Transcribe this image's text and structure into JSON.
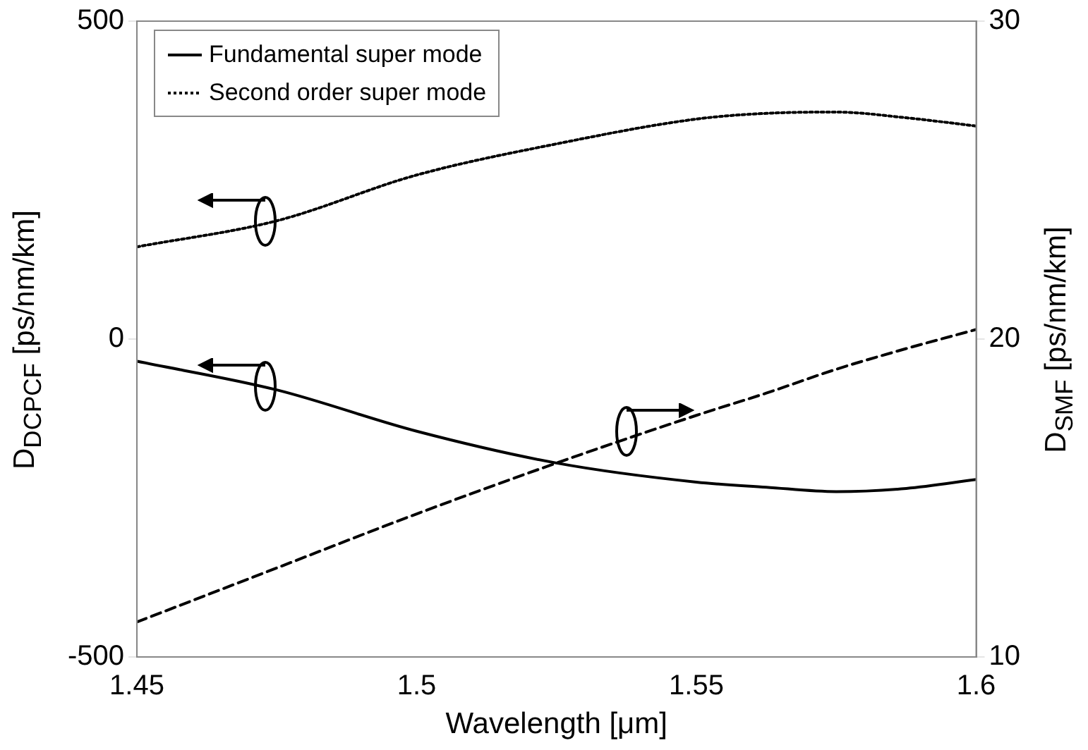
{
  "chart_data": {
    "type": "line",
    "xlabel": "Wavelength [μm]",
    "ylabel": "D$_{DCPCF}$ [ps/nm/km]",
    "y2label": "D$_{SMF}$ [ps/nm/km]",
    "x": [
      1.45,
      1.475,
      1.5,
      1.525,
      1.55,
      1.5625,
      1.575,
      1.5875,
      1.6
    ],
    "series": [
      {
        "name": "Fundamental super mode",
        "color": "#000000",
        "line_style": "solid",
        "values": [
          -35,
          -80,
          -145,
          -195,
          -225,
          -233,
          -240,
          -235,
          -221
        ]
      },
      {
        "name": "Second order super mode",
        "color": "#000000",
        "line_style": "dotted",
        "values": [
          145,
          186,
          258,
          307,
          346,
          355,
          357,
          348,
          335
        ]
      },
      {
        "color": "#000000",
        "line_style": "dashed",
        "axis": "y2",
        "values": [
          11.1,
          12.8,
          14.5,
          16.1,
          17.6,
          18.3,
          19.05,
          19.7,
          20.3
        ]
      }
    ],
    "xlim": [
      1.45,
      1.6
    ],
    "xticks": [
      1.45,
      1.5,
      1.55,
      1.6
    ],
    "ylim": [
      -500,
      500
    ],
    "yticks": [
      -500,
      0,
      500
    ],
    "y2lim": [
      10,
      30
    ],
    "y2ticks": [
      10,
      20,
      30
    ],
    "grid": false,
    "legend": "top left",
    "marker": "none"
  }
}
